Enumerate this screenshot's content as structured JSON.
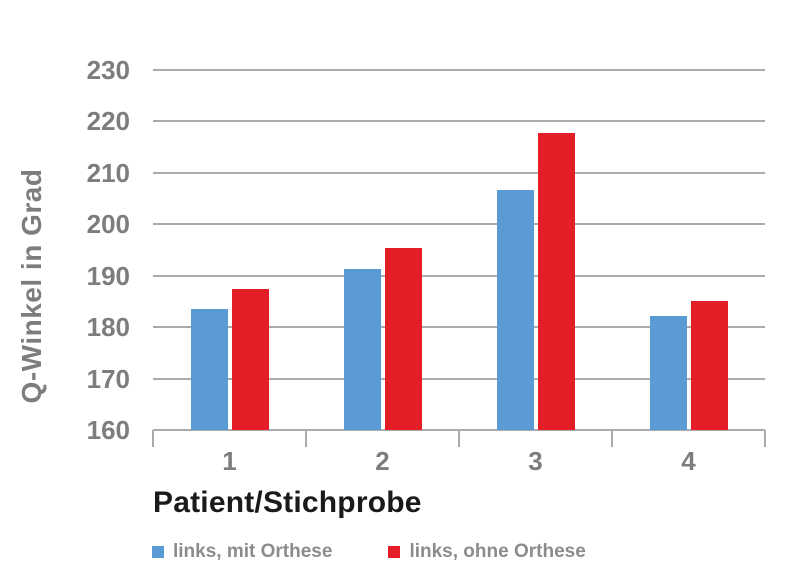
{
  "chart_data": {
    "type": "bar",
    "title": "",
    "xlabel": "Patient/Stichprobe",
    "ylabel": "Q-Winkel in Grad",
    "categories": [
      "1",
      "2",
      "3",
      "4"
    ],
    "series": [
      {
        "name": "links, mit Orthese",
        "color": "#5B9BD5",
        "values": [
          183.5,
          191.4,
          206.7,
          182.2
        ]
      },
      {
        "name": "links, ohne Orthese",
        "color": "#E31E26",
        "values": [
          187.4,
          195.4,
          217.8,
          185.0
        ]
      }
    ],
    "ylim": [
      160,
      230
    ],
    "yticks": [
      160,
      170,
      180,
      190,
      200,
      210,
      220,
      230
    ],
    "ytick_step": 10,
    "grid": true,
    "legend_position": "bottom"
  },
  "colors": {
    "grid": "#ababab",
    "axis_line": "#ababab",
    "tick_label": "#7d7d7d",
    "axis_title": "#7d7d7d",
    "x_title": "#1a1a1a",
    "legend_text": "#8c8c8c",
    "background": "#ffffff"
  }
}
